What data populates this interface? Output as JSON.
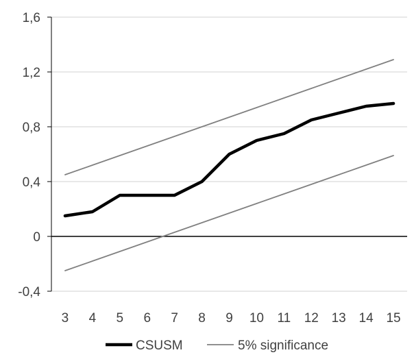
{
  "chart_data": {
    "type": "line",
    "title": "",
    "xlabel": "",
    "ylabel": "",
    "x": [
      3,
      4,
      5,
      6,
      7,
      8,
      9,
      10,
      11,
      12,
      13,
      14,
      15
    ],
    "x_tick_labels": [
      "3",
      "4",
      "5",
      "6",
      "7",
      "8",
      "9",
      "10",
      "11",
      "12",
      "13",
      "14",
      "15"
    ],
    "ylim": [
      -0.4,
      1.6
    ],
    "y_ticks": [
      -0.4,
      0,
      0.4,
      0.8,
      1.2,
      1.6
    ],
    "y_tick_labels": [
      "-0,4",
      "0",
      "0,4",
      "0,8",
      "1,2",
      "1,6"
    ],
    "grid": true,
    "legend_position": "bottom",
    "series": [
      {
        "name": "CSUSM",
        "color": "#000000",
        "values": [
          0.15,
          0.18,
          0.3,
          0.3,
          0.3,
          0.4,
          0.6,
          0.7,
          0.75,
          0.85,
          0.9,
          0.95,
          0.97
        ]
      },
      {
        "name": "5% significance",
        "color": "#808080",
        "values": [
          0.45,
          0.52,
          0.59,
          0.66,
          0.73,
          0.8,
          0.87,
          0.94,
          1.01,
          1.08,
          1.15,
          1.22,
          1.29
        ]
      },
      {
        "name": "",
        "color": "#808080",
        "values": [
          -0.25,
          -0.18,
          -0.11,
          -0.04,
          0.03,
          0.1,
          0.17,
          0.24,
          0.31,
          0.38,
          0.45,
          0.52,
          0.59
        ]
      }
    ]
  }
}
